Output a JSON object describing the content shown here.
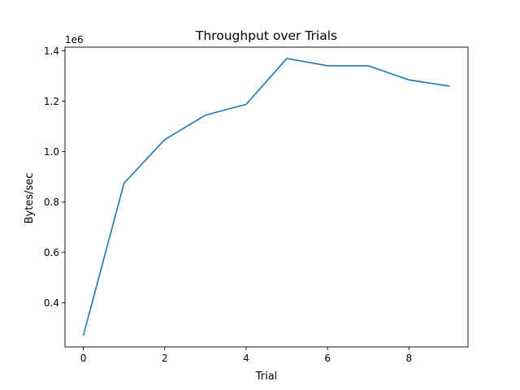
{
  "chart_data": {
    "type": "line",
    "title": "Throughput over Trials",
    "xlabel": "Trial",
    "ylabel": "Bytes/sec",
    "y_offset_label": "1e6",
    "x": [
      0,
      1,
      2,
      3,
      4,
      5,
      6,
      7,
      8,
      9
    ],
    "series": [
      {
        "name": "Throughput",
        "color": "#1f77b4",
        "values": [
          270000,
          875000,
          1048000,
          1145000,
          1188000,
          1370000,
          1341000,
          1341000,
          1285000,
          1260000
        ]
      }
    ],
    "xlim": [
      -0.45,
      9.45
    ],
    "ylim": [
      225000,
      1415000
    ],
    "xticks": [
      0,
      2,
      4,
      6,
      8
    ],
    "xtick_labels": [
      "0",
      "2",
      "4",
      "6",
      "8"
    ],
    "yticks": [
      400000,
      600000,
      800000,
      1000000,
      1200000,
      1400000
    ],
    "ytick_labels": [
      "0.4",
      "0.6",
      "0.8",
      "1.0",
      "1.2",
      "1.4"
    ],
    "grid": false,
    "legend": "none"
  }
}
